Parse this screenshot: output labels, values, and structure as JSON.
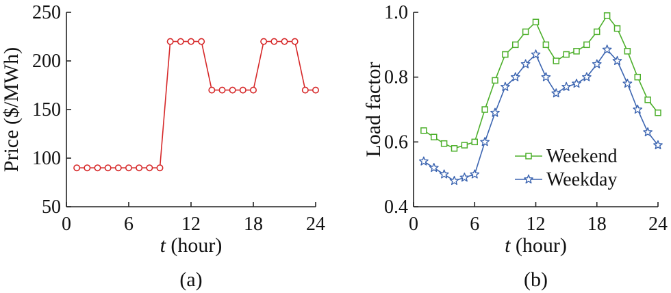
{
  "chart_data": [
    {
      "type": "line",
      "panel_label": "(a)",
      "title": "",
      "xlabel_var": "t",
      "xlabel_unit": " (hour)",
      "ylabel": "Price ($/MWh)",
      "xlim": [
        0,
        24
      ],
      "ylim": [
        50,
        250
      ],
      "xticks": [
        0,
        6,
        12,
        18,
        24
      ],
      "yticks": [
        50,
        100,
        150,
        200,
        250
      ],
      "grid": false,
      "series": [
        {
          "color": "#d62728",
          "marker": "circle",
          "x": [
            1,
            2,
            3,
            4,
            5,
            6,
            7,
            8,
            9,
            10,
            11,
            12,
            13,
            14,
            15,
            16,
            17,
            18,
            19,
            20,
            21,
            22,
            23,
            24
          ],
          "y": [
            90,
            90,
            90,
            90,
            90,
            90,
            90,
            90,
            90,
            220,
            220,
            220,
            220,
            170,
            170,
            170,
            170,
            170,
            220,
            220,
            220,
            220,
            170,
            170
          ]
        }
      ]
    },
    {
      "type": "line",
      "panel_label": "(b)",
      "title": "",
      "xlabel_var": "t",
      "xlabel_unit": " (hour)",
      "ylabel": "Load factor",
      "xlim": [
        0,
        24
      ],
      "ylim": [
        0.4,
        1.0
      ],
      "xticks": [
        0,
        6,
        12,
        18,
        24
      ],
      "yticks": [
        0.4,
        0.6,
        0.8,
        1.0
      ],
      "ytick_labels": [
        "0.4",
        "0.6",
        "0.8",
        "1.0"
      ],
      "grid": false,
      "legend_position": "lower-right",
      "series": [
        {
          "name": "Weekend",
          "color": "#4caf2a",
          "marker": "square",
          "x": [
            1,
            2,
            3,
            4,
            5,
            6,
            7,
            8,
            9,
            10,
            11,
            12,
            13,
            14,
            15,
            16,
            17,
            18,
            19,
            20,
            21,
            22,
            23,
            24
          ],
          "y": [
            0.635,
            0.615,
            0.595,
            0.58,
            0.59,
            0.6,
            0.7,
            0.79,
            0.87,
            0.9,
            0.94,
            0.97,
            0.9,
            0.85,
            0.87,
            0.88,
            0.9,
            0.94,
            0.99,
            0.95,
            0.88,
            0.8,
            0.73,
            0.69
          ]
        },
        {
          "name": "Weekday",
          "color": "#3b64b0",
          "marker": "star",
          "x": [
            1,
            2,
            3,
            4,
            5,
            6,
            7,
            8,
            9,
            10,
            11,
            12,
            13,
            14,
            15,
            16,
            17,
            18,
            19,
            20,
            21,
            22,
            23,
            24
          ],
          "y": [
            0.54,
            0.52,
            0.5,
            0.48,
            0.49,
            0.5,
            0.6,
            0.69,
            0.77,
            0.8,
            0.84,
            0.87,
            0.8,
            0.75,
            0.77,
            0.78,
            0.8,
            0.84,
            0.885,
            0.85,
            0.78,
            0.7,
            0.63,
            0.59
          ]
        }
      ]
    }
  ]
}
